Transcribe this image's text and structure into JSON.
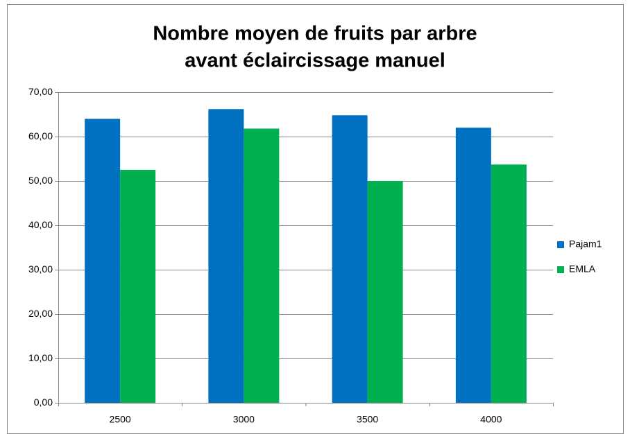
{
  "chart_data": {
    "type": "bar",
    "title": [
      "Nombre moyen de fruits par arbre",
      "avant éclaircissage manuel"
    ],
    "categories": [
      "2500",
      "3000",
      "3500",
      "4000"
    ],
    "series": [
      {
        "name": "Pajam1",
        "color": "#0070c0",
        "values": [
          64.0,
          66.2,
          64.8,
          62.0
        ]
      },
      {
        "name": "EMLA",
        "color": "#00b050",
        "values": [
          52.5,
          61.8,
          50.0,
          53.7
        ]
      }
    ],
    "ylim": [
      0,
      70
    ],
    "yticks": [
      {
        "value": 0,
        "label": "0,00"
      },
      {
        "value": 10,
        "label": "10,00"
      },
      {
        "value": 20,
        "label": "20,00"
      },
      {
        "value": 30,
        "label": "30,00"
      },
      {
        "value": 40,
        "label": "40,00"
      },
      {
        "value": 50,
        "label": "50,00"
      },
      {
        "value": 60,
        "label": "60,00"
      },
      {
        "value": 70,
        "label": "70,00"
      }
    ],
    "grid": true,
    "legend": "right"
  }
}
